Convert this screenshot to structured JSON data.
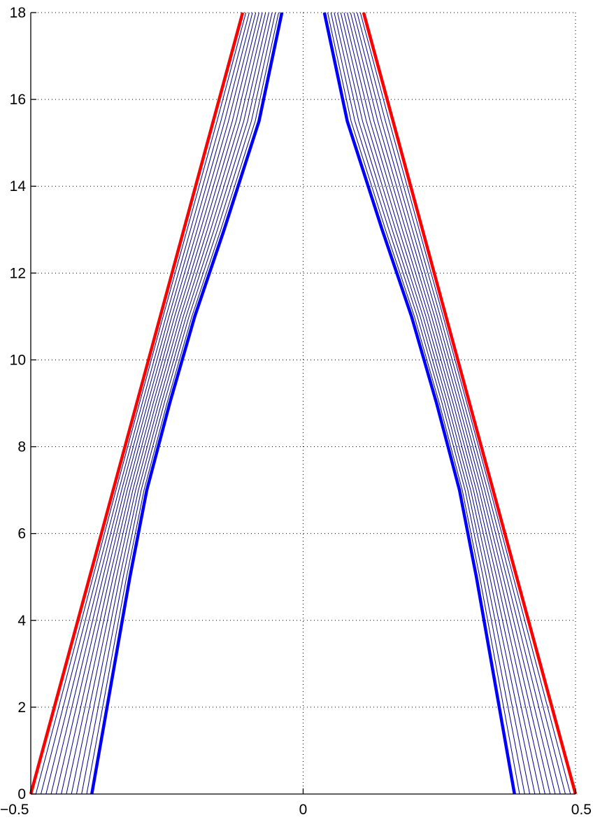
{
  "chart_data": {
    "type": "line",
    "title": "",
    "xlabel": "",
    "ylabel": "",
    "xlim": [
      -0.5,
      0.5
    ],
    "ylim": [
      0,
      18
    ],
    "grid": true,
    "x_ticks": [
      {
        "value": -0.5,
        "label": "−0.5"
      },
      {
        "value": 0,
        "label": "0"
      },
      {
        "value": 0.5,
        "label": "0.5"
      }
    ],
    "y_ticks": [
      {
        "value": 0,
        "label": "0"
      },
      {
        "value": 2,
        "label": "2"
      },
      {
        "value": 4,
        "label": "4"
      },
      {
        "value": 6,
        "label": "6"
      },
      {
        "value": 8,
        "label": "8"
      },
      {
        "value": 10,
        "label": "10"
      },
      {
        "value": 12,
        "label": "12"
      },
      {
        "value": 14,
        "label": "14"
      },
      {
        "value": 16,
        "label": "16"
      },
      {
        "value": 18,
        "label": "18"
      }
    ],
    "colors": {
      "outer": "#ff0000",
      "inner": "#0000ff",
      "family": "#00008b"
    },
    "outer_boundary": {
      "left": [
        [
          -0.5,
          0
        ],
        [
          -0.111,
          18
        ]
      ],
      "right": [
        [
          0.5,
          0
        ],
        [
          0.111,
          18
        ]
      ]
    },
    "inner_boundary": {
      "left": [
        [
          -0.388,
          0
        ],
        [
          -0.318,
          5
        ],
        [
          -0.287,
          7
        ],
        [
          -0.245,
          9
        ],
        [
          -0.199,
          11
        ],
        [
          -0.145,
          13
        ],
        [
          -0.081,
          15.5
        ],
        [
          -0.039,
          18
        ]
      ],
      "right": [
        [
          0.388,
          0
        ],
        [
          0.318,
          5
        ],
        [
          0.287,
          7
        ],
        [
          0.245,
          9
        ],
        [
          0.199,
          11
        ],
        [
          0.145,
          13
        ],
        [
          0.081,
          15.5
        ],
        [
          0.039,
          18
        ]
      ]
    },
    "family_line_count": 11
  }
}
